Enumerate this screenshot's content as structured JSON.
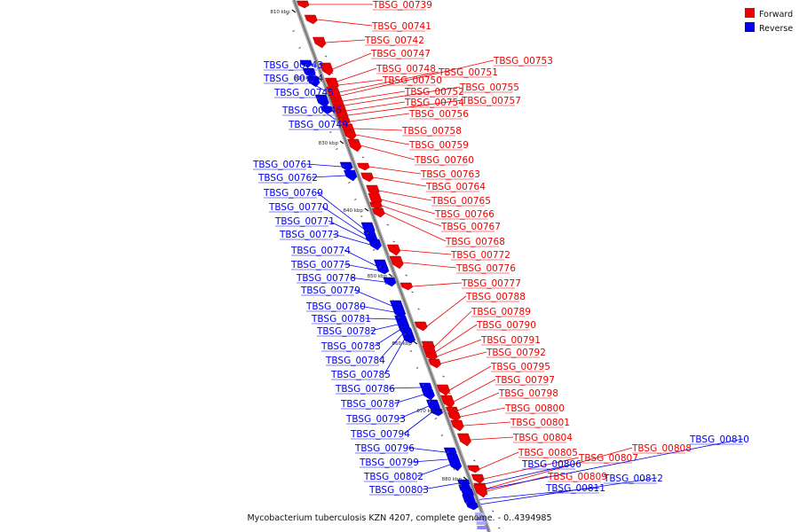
{
  "caption": "Mycobacterium tuberculosis KZN 4207, complete genome. - 0..4394985",
  "legend": [
    {
      "label": "Forward",
      "color": "#ee0000"
    },
    {
      "label": "Reverse",
      "color": "#0000ee"
    }
  ],
  "colors": {
    "forward": "#ee0000",
    "reverse": "#0000ee",
    "backbone": "#888888"
  },
  "ticks": [
    {
      "label": "810 kbp"
    },
    {
      "label": "820 kbp"
    },
    {
      "label": "830 kbp"
    },
    {
      "label": "840 kbp"
    },
    {
      "label": "850 kbp"
    },
    {
      "label": "860 kbp"
    },
    {
      "label": "870 kbp"
    },
    {
      "label": "880 kbp"
    }
  ],
  "forward_genes": [
    "TBSG_00739",
    "TBSG_00741",
    "TBSG_00742",
    "TBSG_00747",
    "TBSG_00748",
    "TBSG_00750",
    "TBSG_00751",
    "TBSG_00753",
    "TBSG_00752",
    "TBSG_00755",
    "TBSG_00754",
    "TBSG_00757",
    "TBSG_00756",
    "TBSG_00758",
    "TBSG_00759",
    "TBSG_00760",
    "TBSG_00763",
    "TBSG_00764",
    "TBSG_00765",
    "TBSG_00766",
    "TBSG_00767",
    "TBSG_00768",
    "TBSG_00772",
    "TBSG_00776",
    "TBSG_00777",
    "TBSG_00788",
    "TBSG_00789",
    "TBSG_00790",
    "TBSG_00791",
    "TBSG_00792",
    "TBSG_00795",
    "TBSG_00797",
    "TBSG_00798",
    "TBSG_00800",
    "TBSG_00801",
    "TBSG_00804",
    "TBSG_00805",
    "TBSG_00807",
    "TBSG_00808",
    "TBSG_00809"
  ],
  "reverse_genes": [
    "TBSG_00743",
    "TBSG_00744",
    "TBSG_00745",
    "TBSG_00746",
    "TBSG_00749",
    "TBSG_00761",
    "TBSG_00762",
    "TBSG_00769",
    "TBSG_00770",
    "TBSG_00771",
    "TBSG_00773",
    "TBSG_00774",
    "TBSG_00775",
    "TBSG_00778",
    "TBSG_00779",
    "TBSG_00780",
    "TBSG_00781",
    "TBSG_00782",
    "TBSG_00783",
    "TBSG_00784",
    "TBSG_00785",
    "TBSG_00786",
    "TBSG_00787",
    "TBSG_00793",
    "TBSG_00794",
    "TBSG_00796",
    "TBSG_00799",
    "TBSG_00802",
    "TBSG_00803",
    "TBSG_00806",
    "TBSG_00810",
    "TBSG_00811",
    "TBSG_00812"
  ]
}
